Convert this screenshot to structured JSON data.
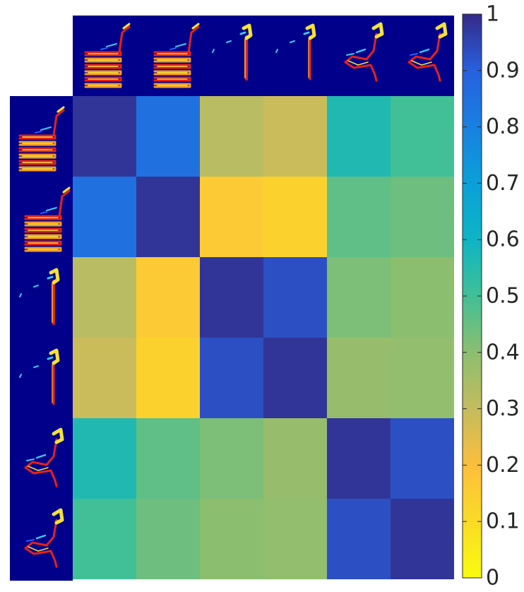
{
  "chart_data": {
    "type": "heatmap",
    "title": "",
    "xlabel": "",
    "ylabel": "",
    "rows": 6,
    "cols": 6,
    "row_header": "glyph-thumbnails",
    "col_header": "glyph-thumbnails",
    "values": [
      [
        0.98,
        0.85,
        0.32,
        0.29,
        0.56,
        0.5
      ],
      [
        0.85,
        0.98,
        0.16,
        0.13,
        0.46,
        0.44
      ],
      [
        0.32,
        0.16,
        0.98,
        0.93,
        0.42,
        0.4
      ],
      [
        0.29,
        0.13,
        0.93,
        0.98,
        0.38,
        0.39
      ],
      [
        0.56,
        0.46,
        0.42,
        0.38,
        0.98,
        0.93
      ],
      [
        0.5,
        0.44,
        0.4,
        0.39,
        0.93,
        0.98
      ]
    ],
    "colorbar": {
      "min": 0,
      "max": 1,
      "ticks": [
        "0",
        "0.1",
        "0.2",
        "0.3",
        "0.4",
        "0.5",
        "0.6",
        "0.7",
        "0.8",
        "0.9",
        "1"
      ],
      "colormap": "parula"
    },
    "thumbnail_background": "#00008b",
    "thumbnail_shapes": [
      "chair-front",
      "chair-side",
      "pole-lamp",
      "pole-lamp-thin",
      "curved-chair",
      "curved-chair-back"
    ]
  }
}
